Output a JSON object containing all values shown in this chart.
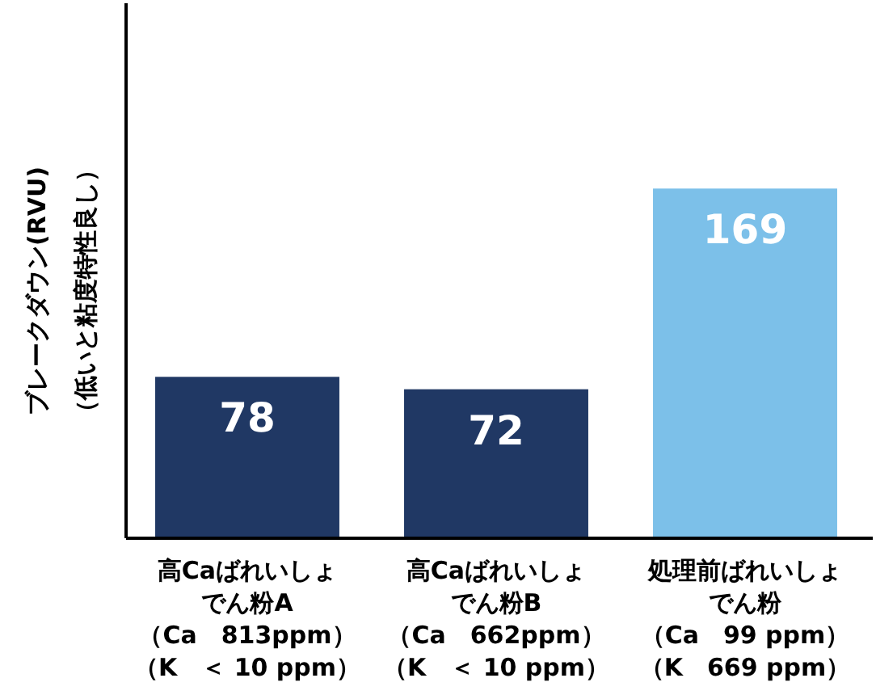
{
  "chart_data": {
    "type": "bar",
    "ylabel": "ブレークダウン(RVU)\n（低いと粘度特性良し）",
    "categories": [
      "高Caばれいしょでん粉A（Ca　813ppm）（K　＜ 10 ppm）",
      "高Caばれいしょでん粉B（Ca　662ppm）（K　＜ 10 ppm）",
      "処理前ばれいしょでん粉（Ca　99 ppm）（K　669 ppm）"
    ],
    "values": [
      78,
      72,
      169
    ],
    "colors": [
      "#203864",
      "#203864",
      "#7cc0e9"
    ],
    "data_labels": true
  }
}
